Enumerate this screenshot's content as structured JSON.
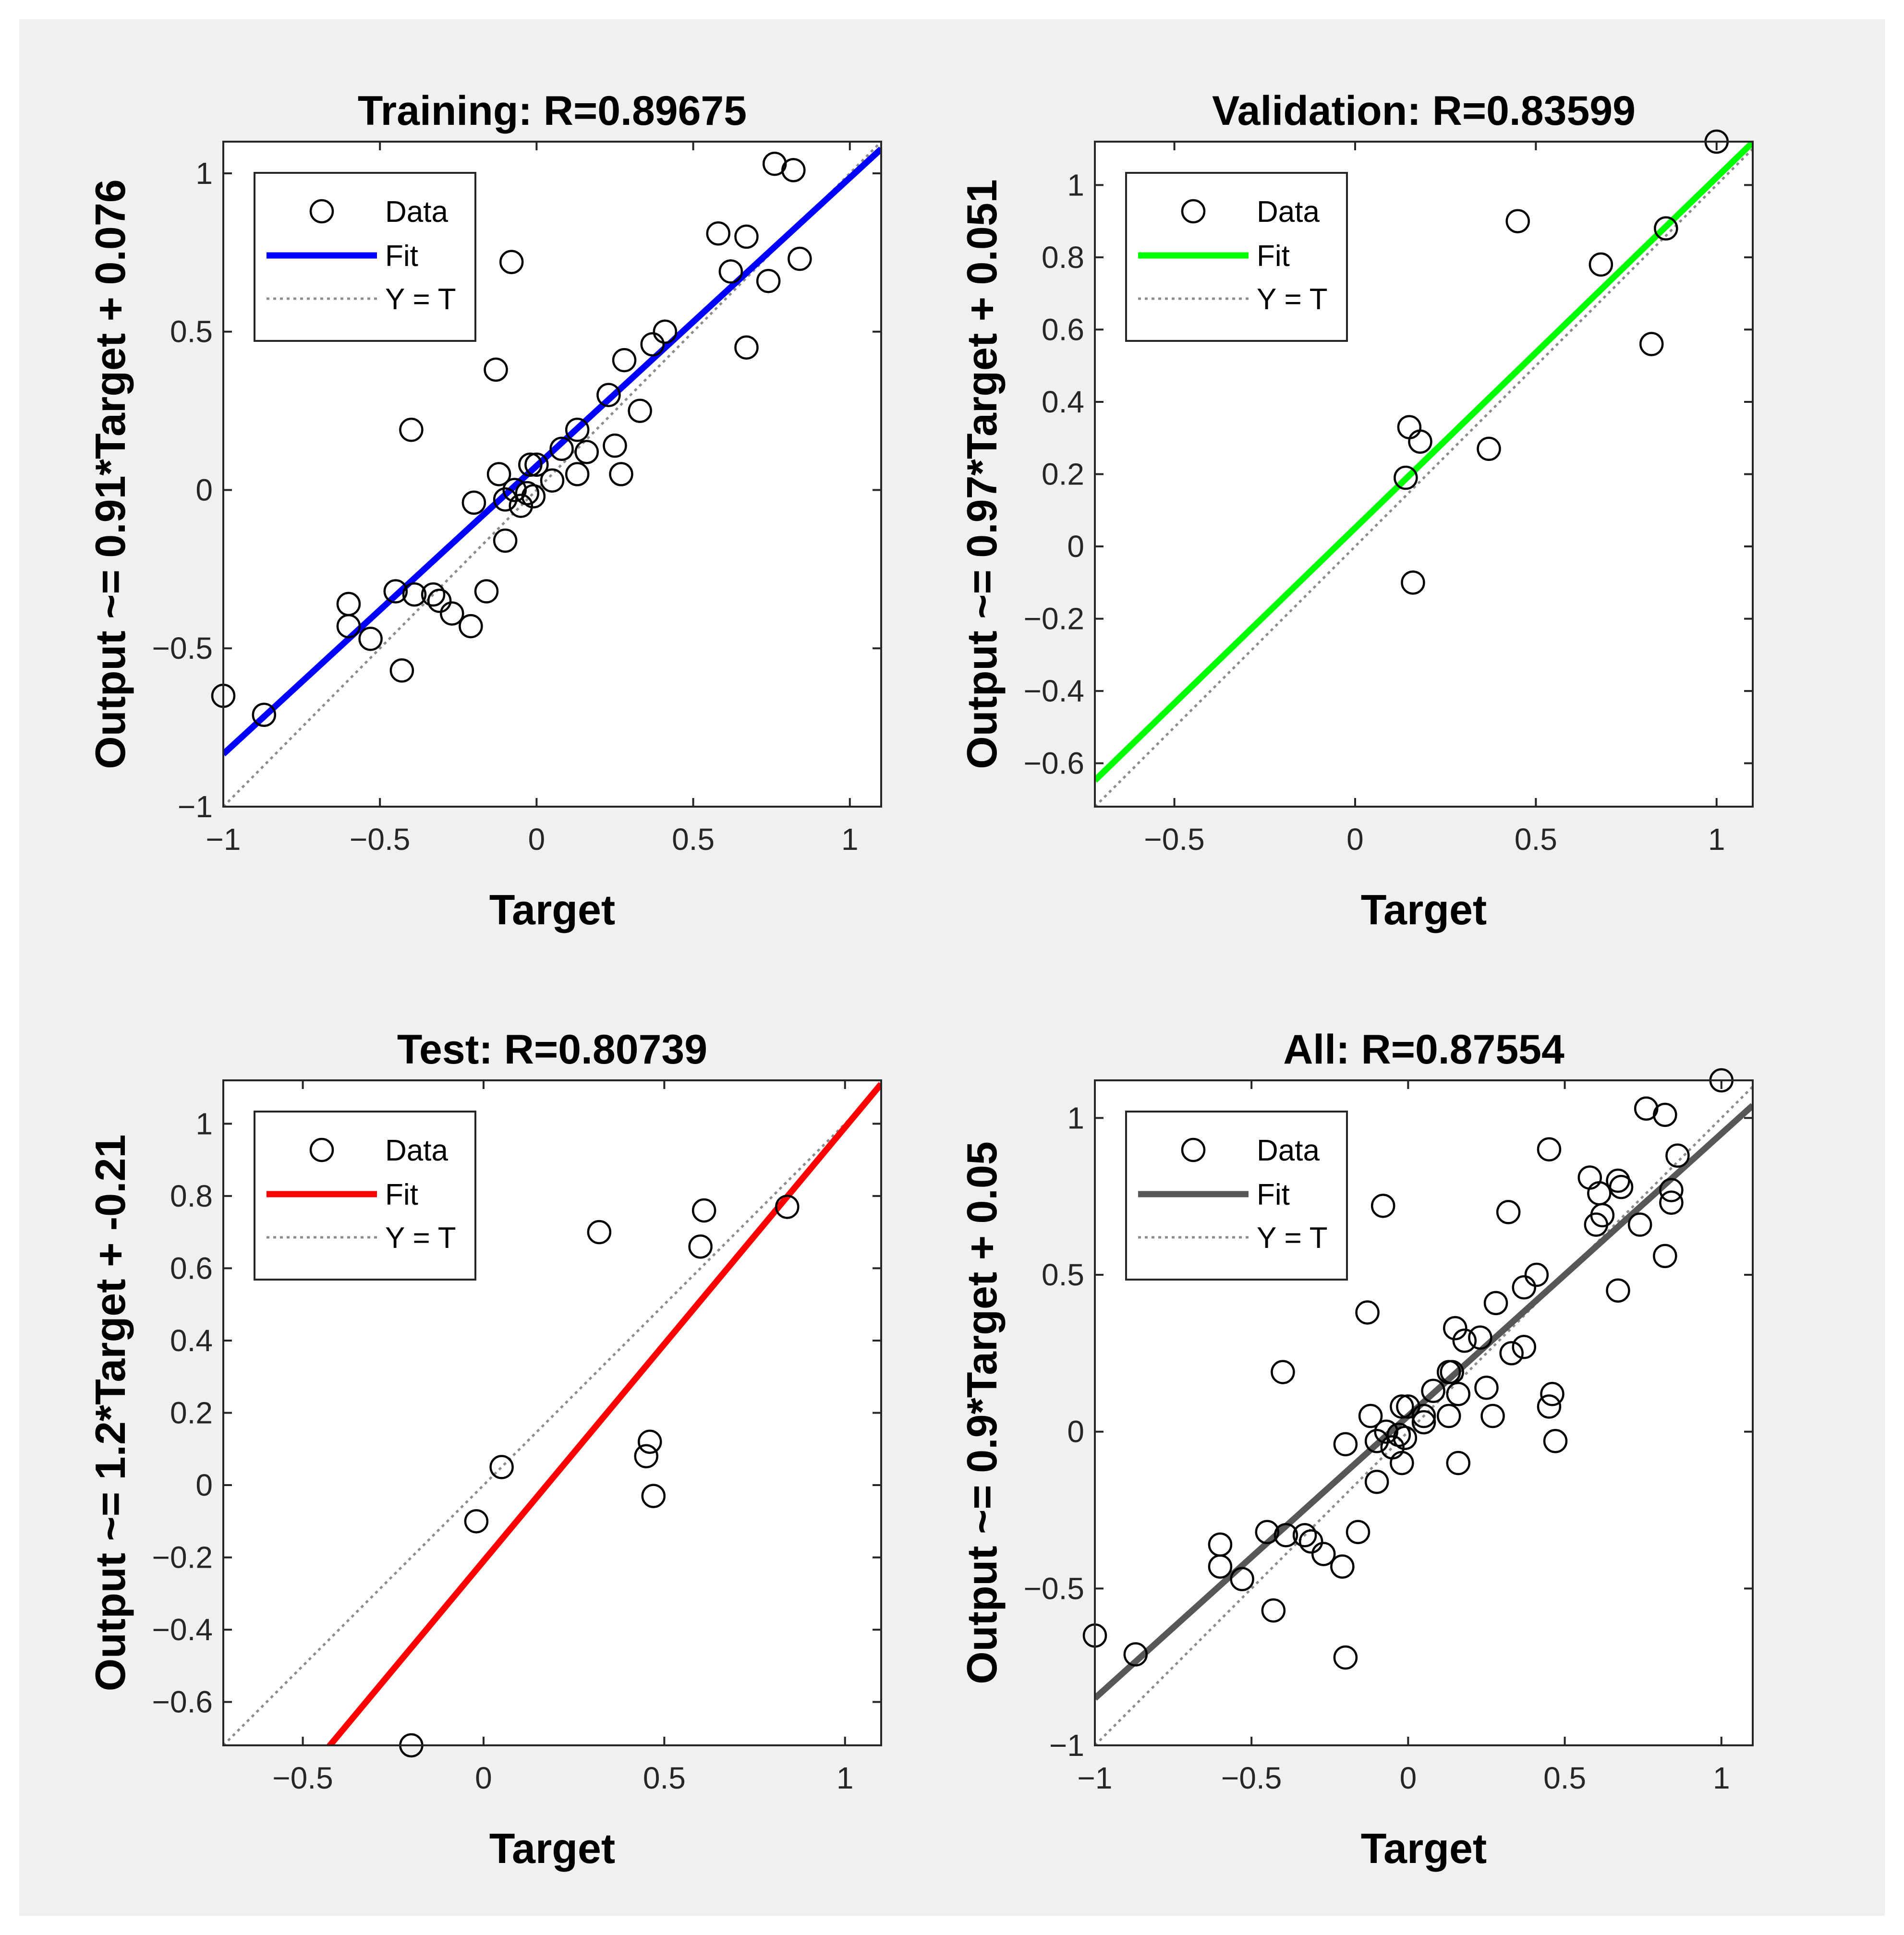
{
  "figure": {
    "background": "#f0f0f0"
  },
  "chart_data": [
    {
      "type": "scatter",
      "title": "Training: R=0.89675",
      "xlabel": "Target",
      "ylabel": "Output ~= 0.91*Target + 0.076",
      "xlim": [
        -1,
        1.1
      ],
      "ylim": [
        -1,
        1.1
      ],
      "xticks": [
        -1,
        -0.5,
        0,
        0.5,
        1
      ],
      "xtick_labels": [
        "−1",
        "−0.5",
        "0",
        "0.5",
        "1"
      ],
      "yticks": [
        -1,
        -0.5,
        0,
        0.5,
        1
      ],
      "ytick_labels": [
        "−1",
        "−0.5",
        "0",
        "0.5",
        "1"
      ],
      "fit": {
        "slope": 0.91,
        "intercept": 0.076,
        "color": "#0000ff"
      },
      "legend": {
        "data": "Data",
        "fit": "Fit",
        "identity": "Y = T"
      },
      "points": [
        [
          -1.0,
          -0.65
        ],
        [
          -0.87,
          -0.71
        ],
        [
          -0.6,
          -0.36
        ],
        [
          -0.6,
          -0.43
        ],
        [
          -0.53,
          -0.47
        ],
        [
          -0.45,
          -0.32
        ],
        [
          -0.43,
          -0.57
        ],
        [
          -0.4,
          0.19
        ],
        [
          -0.39,
          -0.33
        ],
        [
          -0.33,
          -0.33
        ],
        [
          -0.31,
          -0.35
        ],
        [
          -0.27,
          -0.39
        ],
        [
          -0.21,
          -0.43
        ],
        [
          -0.2,
          -0.04
        ],
        [
          -0.16,
          -0.32
        ],
        [
          -0.13,
          0.38
        ],
        [
          -0.12,
          0.05
        ],
        [
          -0.1,
          -0.16
        ],
        [
          -0.1,
          -0.03
        ],
        [
          -0.08,
          0.72
        ],
        [
          -0.07,
          0.0
        ],
        [
          -0.05,
          -0.05
        ],
        [
          -0.03,
          -0.01
        ],
        [
          -0.02,
          0.08
        ],
        [
          -0.01,
          -0.02
        ],
        [
          0.0,
          0.08
        ],
        [
          0.05,
          0.03
        ],
        [
          0.08,
          0.13
        ],
        [
          0.13,
          0.05
        ],
        [
          0.13,
          0.19
        ],
        [
          0.16,
          0.12
        ],
        [
          0.23,
          0.3
        ],
        [
          0.25,
          0.14
        ],
        [
          0.27,
          0.05
        ],
        [
          0.28,
          0.41
        ],
        [
          0.33,
          0.25
        ],
        [
          0.37,
          0.46
        ],
        [
          0.41,
          0.5
        ],
        [
          0.58,
          0.81
        ],
        [
          0.62,
          0.69
        ],
        [
          0.67,
          0.8
        ],
        [
          0.67,
          0.45
        ],
        [
          0.74,
          0.66
        ],
        [
          0.76,
          1.03
        ],
        [
          0.82,
          1.01
        ],
        [
          0.84,
          0.73
        ]
      ]
    },
    {
      "type": "scatter",
      "title": "Validation: R=0.83599",
      "xlabel": "Target",
      "ylabel": "Output ~= 0.97*Target + 0.051",
      "xlim": [
        -0.72,
        1.1
      ],
      "ylim": [
        -0.72,
        1.12
      ],
      "xticks": [
        -0.5,
        0,
        0.5,
        1
      ],
      "xtick_labels": [
        "−0.5",
        "0",
        "0.5",
        "1"
      ],
      "yticks": [
        -0.6,
        -0.4,
        -0.2,
        0,
        0.2,
        0.4,
        0.6,
        0.8,
        1
      ],
      "ytick_labels": [
        "−0.6",
        "−0.4",
        "−0.2",
        "0",
        "0.2",
        "0.4",
        "0.6",
        "0.8",
        "1"
      ],
      "fit": {
        "slope": 0.97,
        "intercept": 0.051,
        "color": "#00ff00"
      },
      "legend": {
        "data": "Data",
        "fit": "Fit",
        "identity": "Y = T"
      },
      "points": [
        [
          0.14,
          0.19
        ],
        [
          0.15,
          0.33
        ],
        [
          0.16,
          -0.1
        ],
        [
          0.18,
          0.29
        ],
        [
          0.37,
          0.27
        ],
        [
          0.45,
          0.9
        ],
        [
          0.68,
          0.78
        ],
        [
          0.82,
          0.56
        ],
        [
          0.86,
          0.88
        ],
        [
          1.0,
          1.12
        ]
      ]
    },
    {
      "type": "scatter",
      "title": "Test: R=0.80739",
      "xlabel": "Target",
      "ylabel": "Output ~= 1.2*Target + -0.21",
      "xlim": [
        -0.72,
        1.1
      ],
      "ylim": [
        -0.72,
        1.12
      ],
      "xticks": [
        -0.5,
        0,
        0.5,
        1
      ],
      "xtick_labels": [
        "−0.5",
        "0",
        "0.5",
        "1"
      ],
      "yticks": [
        -0.6,
        -0.4,
        -0.2,
        0,
        0.2,
        0.4,
        0.6,
        0.8,
        1
      ],
      "ytick_labels": [
        "−0.6",
        "−0.4",
        "−0.2",
        "0",
        "0.2",
        "0.4",
        "0.6",
        "0.8",
        "1"
      ],
      "fit": {
        "slope": 1.2,
        "intercept": -0.21,
        "color": "#ff0000"
      },
      "legend": {
        "data": "Data",
        "fit": "Fit",
        "identity": "Y = T"
      },
      "points": [
        [
          -0.2,
          -0.72
        ],
        [
          -0.02,
          -0.1
        ],
        [
          0.05,
          0.05
        ],
        [
          0.32,
          0.7
        ],
        [
          0.45,
          0.08
        ],
        [
          0.46,
          0.12
        ],
        [
          0.47,
          -0.03
        ],
        [
          0.6,
          0.66
        ],
        [
          0.61,
          0.76
        ],
        [
          0.84,
          0.77
        ]
      ]
    },
    {
      "type": "scatter",
      "title": "All: R=0.87554",
      "xlabel": "Target",
      "ylabel": "Output ~= 0.9*Target + 0.05",
      "xlim": [
        -1,
        1.1
      ],
      "ylim": [
        -1,
        1.12
      ],
      "xticks": [
        -1,
        -0.5,
        0,
        0.5,
        1
      ],
      "xtick_labels": [
        "−1",
        "−0.5",
        "0",
        "0.5",
        "1"
      ],
      "yticks": [
        -1,
        -0.5,
        0,
        0.5,
        1
      ],
      "ytick_labels": [
        "−1",
        "−0.5",
        "0",
        "0.5",
        "1"
      ],
      "fit": {
        "slope": 0.9,
        "intercept": 0.05,
        "color": "#575757"
      },
      "legend": {
        "data": "Data",
        "fit": "Fit",
        "identity": "Y = T"
      },
      "points": [
        [
          -1.0,
          -0.65
        ],
        [
          -0.87,
          -0.71
        ],
        [
          -0.6,
          -0.36
        ],
        [
          -0.6,
          -0.43
        ],
        [
          -0.53,
          -0.47
        ],
        [
          -0.45,
          -0.32
        ],
        [
          -0.43,
          -0.57
        ],
        [
          -0.4,
          0.19
        ],
        [
          -0.39,
          -0.33
        ],
        [
          -0.33,
          -0.33
        ],
        [
          -0.31,
          -0.35
        ],
        [
          -0.27,
          -0.39
        ],
        [
          -0.21,
          -0.43
        ],
        [
          -0.2,
          -0.04
        ],
        [
          -0.16,
          -0.32
        ],
        [
          -0.13,
          0.38
        ],
        [
          -0.12,
          0.05
        ],
        [
          -0.1,
          -0.16
        ],
        [
          -0.1,
          -0.03
        ],
        [
          -0.08,
          0.72
        ],
        [
          -0.07,
          0.0
        ],
        [
          -0.05,
          -0.05
        ],
        [
          -0.03,
          -0.01
        ],
        [
          -0.02,
          0.08
        ],
        [
          -0.01,
          -0.02
        ],
        [
          0.0,
          0.08
        ],
        [
          0.05,
          0.03
        ],
        [
          0.08,
          0.13
        ],
        [
          0.13,
          0.05
        ],
        [
          0.13,
          0.19
        ],
        [
          0.16,
          0.12
        ],
        [
          0.23,
          0.3
        ],
        [
          0.25,
          0.14
        ],
        [
          0.27,
          0.05
        ],
        [
          0.28,
          0.41
        ],
        [
          0.33,
          0.25
        ],
        [
          0.37,
          0.46
        ],
        [
          0.41,
          0.5
        ],
        [
          0.58,
          0.81
        ],
        [
          0.62,
          0.69
        ],
        [
          0.67,
          0.8
        ],
        [
          0.67,
          0.45
        ],
        [
          0.74,
          0.66
        ],
        [
          0.76,
          1.03
        ],
        [
          0.82,
          1.01
        ],
        [
          0.84,
          0.73
        ],
        [
          0.14,
          0.19
        ],
        [
          0.15,
          0.33
        ],
        [
          0.16,
          -0.1
        ],
        [
          0.18,
          0.29
        ],
        [
          0.37,
          0.27
        ],
        [
          0.45,
          0.9
        ],
        [
          0.68,
          0.78
        ],
        [
          0.82,
          0.56
        ],
        [
          0.86,
          0.88
        ],
        [
          1.0,
          1.12
        ],
        [
          -0.2,
          -0.72
        ],
        [
          -0.02,
          -0.1
        ],
        [
          0.05,
          0.05
        ],
        [
          0.32,
          0.7
        ],
        [
          0.45,
          0.08
        ],
        [
          0.46,
          0.12
        ],
        [
          0.47,
          -0.03
        ],
        [
          0.6,
          0.66
        ],
        [
          0.61,
          0.76
        ],
        [
          0.84,
          0.77
        ]
      ]
    }
  ]
}
